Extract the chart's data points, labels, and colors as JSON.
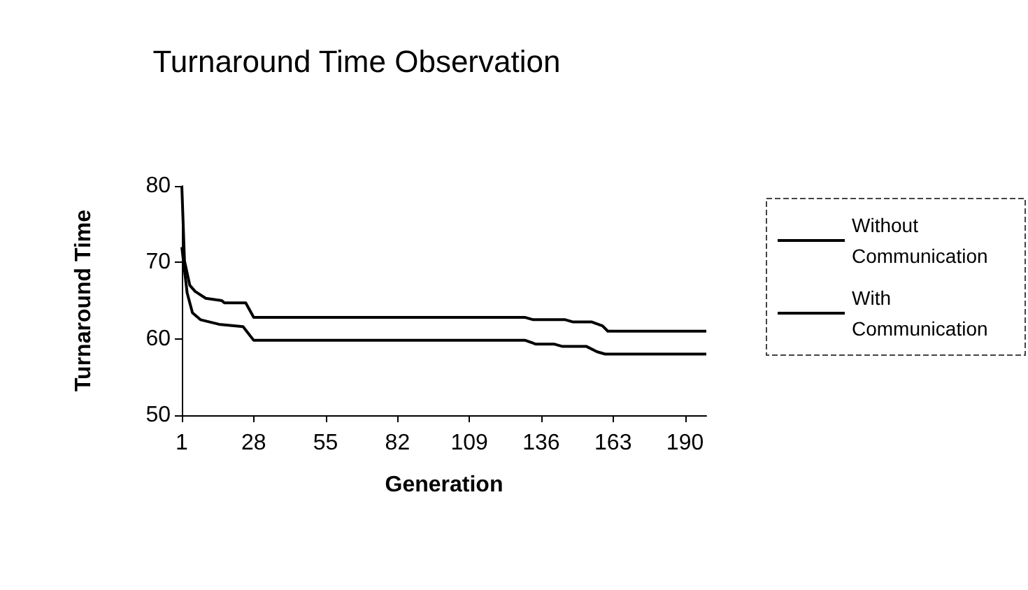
{
  "chart_data": {
    "type": "line",
    "title": "Turnaround Time Observation",
    "xlabel": "Generation",
    "ylabel": "Turnaround Time",
    "xlim": [
      1,
      198
    ],
    "xticks": [
      1,
      28,
      55,
      82,
      109,
      136,
      163,
      190
    ],
    "ylim": [
      50,
      80
    ],
    "yticks": [
      50,
      60,
      70,
      80
    ],
    "grid": false,
    "legend": "right",
    "marker": "none",
    "line_style": "solid",
    "series": [
      {
        "name": "Without Communication",
        "color": "#000000",
        "x": [
          1,
          2,
          4,
          6,
          10,
          16,
          17,
          25,
          28,
          130,
          133,
          145,
          148,
          155,
          159,
          161,
          198
        ],
        "values": [
          80,
          70.2,
          67,
          66.2,
          65.3,
          65,
          64.7,
          64.7,
          62.8,
          62.8,
          62.5,
          62.5,
          62.2,
          62.2,
          61.7,
          61,
          61
        ]
      },
      {
        "name": "With Communication",
        "color": "#000000",
        "x": [
          1,
          3,
          5,
          8,
          15,
          24,
          28,
          130,
          134,
          141,
          144,
          153,
          157,
          160,
          198
        ],
        "values": [
          72,
          66,
          63.4,
          62.5,
          61.9,
          61.6,
          59.8,
          59.8,
          59.3,
          59.3,
          59,
          59,
          58.3,
          58,
          58
        ]
      }
    ]
  }
}
